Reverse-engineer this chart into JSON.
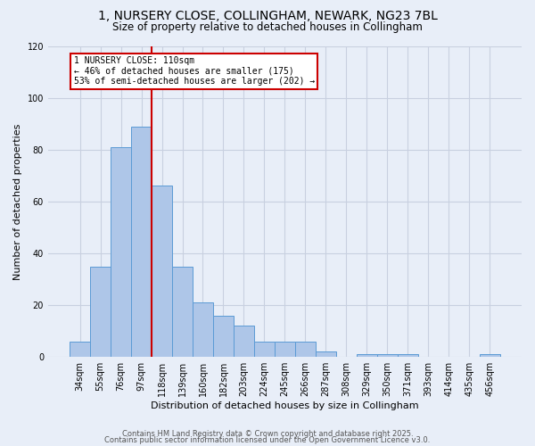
{
  "title1": "1, NURSERY CLOSE, COLLINGHAM, NEWARK, NG23 7BL",
  "title2": "Size of property relative to detached houses in Collingham",
  "xlabel": "Distribution of detached houses by size in Collingham",
  "ylabel": "Number of detached properties",
  "bar_labels": [
    "34sqm",
    "55sqm",
    "76sqm",
    "97sqm",
    "118sqm",
    "139sqm",
    "160sqm",
    "182sqm",
    "203sqm",
    "224sqm",
    "245sqm",
    "266sqm",
    "287sqm",
    "308sqm",
    "329sqm",
    "350sqm",
    "371sqm",
    "393sqm",
    "414sqm",
    "435sqm",
    "456sqm"
  ],
  "bar_values": [
    6,
    35,
    81,
    89,
    66,
    35,
    21,
    16,
    12,
    6,
    6,
    6,
    2,
    0,
    1,
    1,
    1,
    0,
    0,
    0,
    1
  ],
  "bar_color": "#aec6e8",
  "bar_edge_color": "#5b9bd5",
  "bar_width": 1.0,
  "vline_x": 3.5,
  "vline_color": "#cc0000",
  "annotation_text": "1 NURSERY CLOSE: 110sqm\n← 46% of detached houses are smaller (175)\n53% of semi-detached houses are larger (202) →",
  "annotation_box_color": "white",
  "annotation_box_edge": "#cc0000",
  "ylim": [
    0,
    120
  ],
  "yticks": [
    0,
    20,
    40,
    60,
    80,
    100,
    120
  ],
  "grid_color": "#c8d0e0",
  "bg_color": "#e8eef8",
  "footer1": "Contains HM Land Registry data © Crown copyright and database right 2025.",
  "footer2": "Contains public sector information licensed under the Open Government Licence v3.0.",
  "title1_fontsize": 10,
  "title2_fontsize": 8.5,
  "tick_fontsize": 7,
  "label_fontsize": 8,
  "annotation_fontsize": 7,
  "footer_fontsize": 6
}
